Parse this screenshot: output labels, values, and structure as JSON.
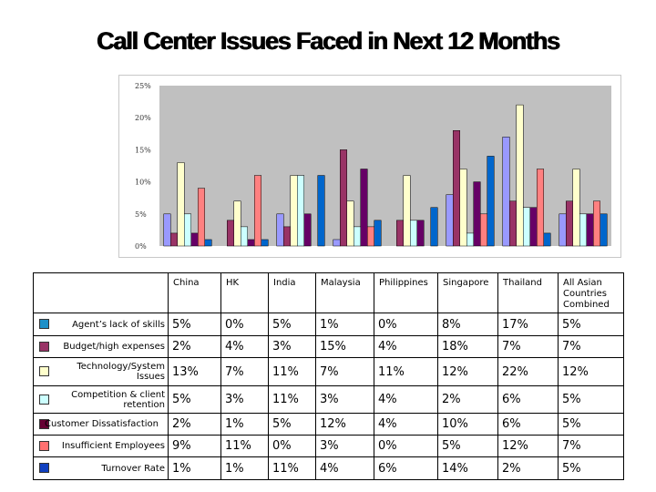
{
  "title": "Call Center Issues Faced in Next 12 Months",
  "chart_data": {
    "type": "bar",
    "title": "Call Center Issues Faced in Next 12 Months",
    "categories": [
      "China",
      "HK",
      "India",
      "Malaysia",
      "Philippines",
      "Singapore",
      "Thailand",
      "All Asian Countries Combined"
    ],
    "ylim": [
      0,
      25
    ],
    "yticks": [
      0,
      5,
      10,
      15,
      20,
      25
    ],
    "ytick_labels": [
      "0%",
      "5%",
      "10%",
      "15%",
      "20%",
      "25%"
    ],
    "grid": false,
    "legend": "table-left",
    "series": [
      {
        "name": "Agent’s lack of skills",
        "color": "#9999FF",
        "table_color": "#1E90C8",
        "values": [
          5,
          0,
          5,
          1,
          0,
          8,
          17,
          5
        ]
      },
      {
        "name": "Budget/high expenses",
        "color": "#993366",
        "table_color": "#993366",
        "values": [
          2,
          4,
          3,
          15,
          4,
          18,
          7,
          7
        ]
      },
      {
        "name": "Technology/System Issues",
        "color": "#FFFFCC",
        "table_color": "#FFFFCC",
        "values": [
          13,
          7,
          11,
          7,
          11,
          12,
          22,
          12
        ]
      },
      {
        "name": "Competition & client retention",
        "color": "#CCFFFF",
        "table_color": "#CCFFFF",
        "values": [
          5,
          3,
          11,
          3,
          4,
          2,
          6,
          5
        ]
      },
      {
        "name": "Customer Dissatisfaction",
        "color": "#660066",
        "table_color": "#660033",
        "values": [
          2,
          1,
          5,
          12,
          4,
          10,
          6,
          5
        ]
      },
      {
        "name": "Insufficient Employees",
        "color": "#FF8080",
        "table_color": "#FF7070",
        "values": [
          9,
          11,
          0,
          3,
          0,
          5,
          12,
          7
        ]
      },
      {
        "name": "Turnover Rate",
        "color": "#0066CC",
        "table_color": "#1040C0",
        "values": [
          1,
          1,
          11,
          4,
          6,
          14,
          2,
          5
        ]
      }
    ]
  },
  "table": {
    "headers": [
      "China",
      "HK",
      "India",
      "Malaysia",
      "Philippines",
      "Singapore",
      "Thailand",
      "All Asian Countries Combined"
    ],
    "rows": [
      {
        "label": "Agent’s lack of skills",
        "cells": [
          "5%",
          "0%",
          "5%",
          "1%",
          "0%",
          "8%",
          "17%",
          "5%"
        ]
      },
      {
        "label": "Budget/high expenses",
        "cells": [
          "2%",
          "4%",
          "3%",
          "15%",
          "4%",
          "18%",
          "7%",
          "7%"
        ]
      },
      {
        "label": "Technology/System Issues",
        "cells": [
          "13%",
          "7%",
          "11%",
          "7%",
          "11%",
          "12%",
          "22%",
          "12%"
        ]
      },
      {
        "label": "Competition & client retention",
        "cells": [
          "5%",
          "3%",
          "11%",
          "3%",
          "4%",
          "2%",
          "6%",
          "5%"
        ]
      },
      {
        "label": "Customer Dissatisfaction",
        "cells": [
          "2%",
          "1%",
          "5%",
          "12%",
          "4%",
          "10%",
          "6%",
          "5%"
        ]
      },
      {
        "label": "Insufficient Employees",
        "cells": [
          "9%",
          "11%",
          "0%",
          "3%",
          "0%",
          "5%",
          "12%",
          "7%"
        ]
      },
      {
        "label": "Turnover Rate",
        "cells": [
          "1%",
          "1%",
          "11%",
          "4%",
          "6%",
          "14%",
          "2%",
          "5%"
        ]
      }
    ]
  }
}
